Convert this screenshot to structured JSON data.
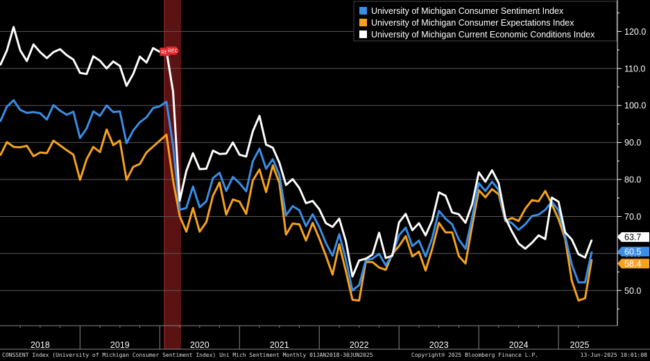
{
  "chart_data": {
    "type": "line",
    "title": "",
    "xlabel": "",
    "ylabel": "",
    "ylim": [
      40.5,
      128.5
    ],
    "y_axis_position": "right",
    "y_ticks": [
      50,
      60,
      70,
      80,
      90,
      100,
      110,
      120
    ],
    "y_tick_labels": [
      "50.0",
      "60.0",
      "70.0",
      "80.0",
      "90.0",
      "100.0",
      "110.0",
      "120.0"
    ],
    "x_start": "2018-01",
    "x_end": "2025-06",
    "x_year_labels": [
      "2018",
      "2019",
      "2020",
      "2021",
      "2022",
      "2023",
      "2024",
      "2025"
    ],
    "grid": true,
    "background": "#000000",
    "legend_position": "top-right",
    "recession_shading": {
      "start": "2020-02",
      "end": "2020-04",
      "marker_label": "REC",
      "color": "#6b1515"
    },
    "last_value_labels": [
      {
        "series": "University of Michigan Current Economic Conditions Index",
        "value": "63.7"
      },
      {
        "series": "University of Michigan Consumer Sentiment Index",
        "value": "60.5"
      },
      {
        "series": "University of Michigan Consumer Expectations Index",
        "value": "58.4"
      }
    ],
    "series": [
      {
        "name": "University of Michigan Consumer Sentiment Index",
        "color": "#3a8ee6",
        "values": [
          95.7,
          99.7,
          101.4,
          98.8,
          98.0,
          98.2,
          97.9,
          96.2,
          100.1,
          98.6,
          97.5,
          98.3,
          91.2,
          93.8,
          98.4,
          97.2,
          100.0,
          98.2,
          98.4,
          89.8,
          93.2,
          95.5,
          96.8,
          99.3,
          99.8,
          101.0,
          89.1,
          71.8,
          72.3,
          78.1,
          72.5,
          74.1,
          80.4,
          81.8,
          76.9,
          80.7,
          79.0,
          76.8,
          84.9,
          88.3,
          82.9,
          85.5,
          81.2,
          70.3,
          72.8,
          71.7,
          67.4,
          70.6,
          67.2,
          62.8,
          59.4,
          65.2,
          58.4,
          50.0,
          51.5,
          58.2,
          58.6,
          59.9,
          56.8,
          59.7,
          64.9,
          67.0,
          62.0,
          63.5,
          59.2,
          64.2,
          71.5,
          69.4,
          67.9,
          63.8,
          61.3,
          69.7,
          79.0,
          76.9,
          79.4,
          77.2,
          69.1,
          68.2,
          66.4,
          67.9,
          70.1,
          70.5,
          71.8,
          74.0,
          71.7,
          64.7,
          57.0,
          52.2,
          52.2,
          60.5
        ]
      },
      {
        "name": "University of Michigan Consumer Expectations Index",
        "color": "#f5a21e",
        "values": [
          86.5,
          90.1,
          88.8,
          88.7,
          89.1,
          86.3,
          87.3,
          87.1,
          90.5,
          89.2,
          87.9,
          86.7,
          79.9,
          85.5,
          88.8,
          87.4,
          93.5,
          89.3,
          90.5,
          79.9,
          83.4,
          84.2,
          87.3,
          88.9,
          90.5,
          92.1,
          79.7,
          70.1,
          65.9,
          72.3,
          65.9,
          68.5,
          75.6,
          79.2,
          70.5,
          74.6,
          74.0,
          70.7,
          79.7,
          82.7,
          76.6,
          83.8,
          79.0,
          65.1,
          68.1,
          67.9,
          63.5,
          68.3,
          64.1,
          59.4,
          54.3,
          62.5,
          55.2,
          47.5,
          47.3,
          57.7,
          57.7,
          56.2,
          55.6,
          59.9,
          62.0,
          64.7,
          59.2,
          60.5,
          55.4,
          61.3,
          68.3,
          65.7,
          65.7,
          59.3,
          57.3,
          67.4,
          77.1,
          75.2,
          77.4,
          76.0,
          68.8,
          69.6,
          68.8,
          72.1,
          74.4,
          74.1,
          76.9,
          73.3,
          69.3,
          64.0,
          52.6,
          47.3,
          47.9,
          58.4
        ]
      },
      {
        "name": "University of Michigan Current Economic Conditions Index",
        "color": "#ffffff",
        "values": [
          110.9,
          114.9,
          121.2,
          114.9,
          112.0,
          116.5,
          114.4,
          112.8,
          114.4,
          115.2,
          113.6,
          112.4,
          108.8,
          108.5,
          113.3,
          112.1,
          110.0,
          111.9,
          110.7,
          105.3,
          108.5,
          113.2,
          111.6,
          115.5,
          114.5,
          114.8,
          103.7,
          74.3,
          82.3,
          87.1,
          82.8,
          82.9,
          87.8,
          86.9,
          87.0,
          90.0,
          86.7,
          86.2,
          93.0,
          97.2,
          89.4,
          88.6,
          84.5,
          78.5,
          80.1,
          77.7,
          73.6,
          74.2,
          72.0,
          68.2,
          67.2,
          69.4,
          63.3,
          53.8,
          58.1,
          58.6,
          59.7,
          65.6,
          58.8,
          59.4,
          68.4,
          70.7,
          66.3,
          68.2,
          64.9,
          69.0,
          76.5,
          75.6,
          71.1,
          70.6,
          68.3,
          73.3,
          81.9,
          79.4,
          82.5,
          79.0,
          69.6,
          65.9,
          62.7,
          61.3,
          62.9,
          64.9,
          63.9,
          75.1,
          74.0,
          65.7,
          63.8,
          59.8,
          58.9,
          63.7
        ]
      }
    ]
  },
  "footer": {
    "left": "CONSSENT Index (University of Michigan Consumer Sentiment Index) Uni Mich Sentiment  Monthly 01JAN2018-30JUN2025",
    "middle": "Copyright® 2025 Bloomberg Finance L.P.",
    "right": "13-Jun-2025 10:01:08"
  }
}
